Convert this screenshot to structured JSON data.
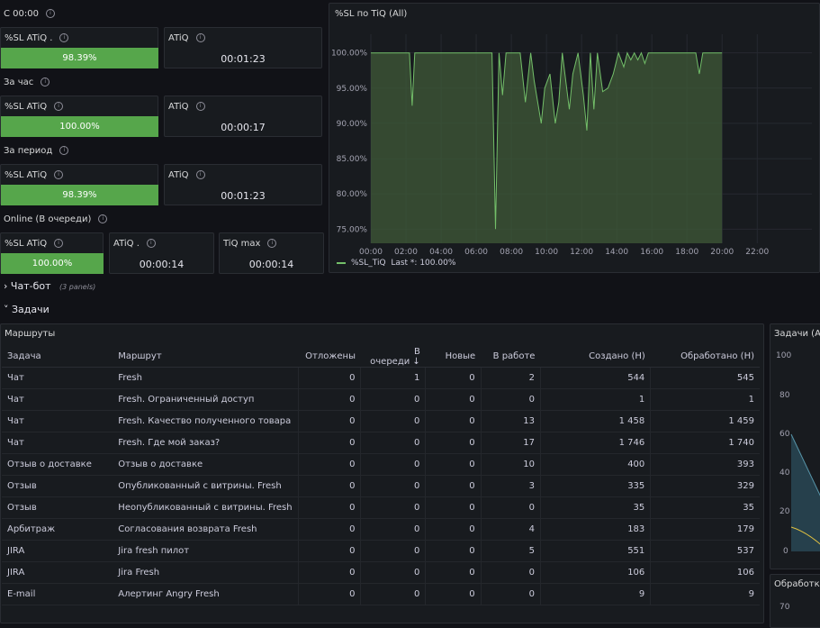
{
  "sections": [
    {
      "title": "С 00:00",
      "sl_label": "%SL ATiQ .",
      "sl_value": "98.39%",
      "sl_pct": 98.39,
      "atiq_label": "ATiQ",
      "atiq_value": "00:01:23"
    },
    {
      "title": "За час",
      "sl_label": "%SL ATiQ",
      "sl_value": "100.00%",
      "sl_pct": 100,
      "atiq_label": "ATiQ",
      "atiq_value": "00:00:17"
    },
    {
      "title": "За период",
      "sl_label": "%SL ATiQ",
      "sl_value": "98.39%",
      "sl_pct": 98.39,
      "atiq_label": "ATiQ",
      "atiq_value": "00:01:23"
    }
  ],
  "online": {
    "title": "Online (В очереди)",
    "sl_label": "%SL ATiQ",
    "sl_value": "100.00%",
    "sl_pct": 100,
    "atiq_label": "ATiQ .",
    "atiq_value": "00:00:14",
    "tiq_label": "TiQ max",
    "tiq_value": "00:00:14"
  },
  "chart_panel": {
    "title": "%SL по TiQ (All)",
    "legend_name": "%SL_TiQ",
    "legend_last": "Last *: 100.00%"
  },
  "chart_data": {
    "type": "area",
    "title": "%SL по TiQ (All)",
    "y_ticks": [
      "100.00%",
      "95.00%",
      "90.00%",
      "85.00%",
      "80.00%",
      "75.00%"
    ],
    "x_ticks": [
      "00:00",
      "02:00",
      "04:00",
      "06:00",
      "08:00",
      "10:00",
      "12:00",
      "14:00",
      "16:00",
      "18:00",
      "20:00",
      "22:00"
    ],
    "ylim": [
      73,
      102
    ],
    "xlim": [
      0,
      23
    ],
    "series": [
      {
        "name": "%SL_TiQ",
        "color": "#73bf69",
        "x": [
          0,
          2.2,
          2.35,
          2.5,
          2.7,
          6.9,
          7.1,
          7.3,
          7.5,
          7.7,
          7.9,
          8.5,
          8.8,
          9.1,
          9.3,
          9.5,
          9.7,
          9.9,
          10.2,
          10.5,
          10.7,
          10.9,
          11.1,
          11.3,
          11.5,
          11.8,
          12.1,
          12.3,
          12.5,
          12.7,
          12.9,
          13.2,
          13.5,
          13.8,
          14.1,
          14.4,
          14.6,
          14.8,
          15,
          15.2,
          15.4,
          15.6,
          15.8,
          16,
          18.5,
          18.7,
          18.9,
          20
        ],
        "y": [
          100,
          100,
          92.5,
          100,
          100,
          100,
          75,
          100,
          94,
          100,
          100,
          100,
          93,
          100,
          96,
          93,
          90,
          95,
          97,
          90,
          93,
          100,
          96,
          92,
          97,
          100,
          94,
          89,
          100,
          92,
          100,
          94.5,
          95,
          97,
          100,
          98,
          100,
          99,
          100,
          99,
          100,
          98.5,
          100,
          100,
          100,
          97,
          100,
          100
        ]
      }
    ]
  },
  "collapsed_row": {
    "title": "Чат-бот",
    "sub": "(3 panels)"
  },
  "tasks_row": {
    "title": "Задачи"
  },
  "table": {
    "title": "Маршруты",
    "headers": [
      "Задача",
      "Маршрут",
      "Отложены",
      "В очереди",
      "Новые",
      "В работе",
      "Создано (Н)",
      "Обработано (Н)"
    ],
    "sort_icon": "↓",
    "rows": [
      [
        "Чат",
        "Fresh",
        "0",
        "1",
        "0",
        "2",
        "544",
        "545"
      ],
      [
        "Чат",
        "Fresh. Ограниченный доступ",
        "0",
        "0",
        "0",
        "0",
        "1",
        "1"
      ],
      [
        "Чат",
        "Fresh. Качество полученного товара",
        "0",
        "0",
        "0",
        "13",
        "1 458",
        "1 459"
      ],
      [
        "Чат",
        "Fresh. Где мой заказ?",
        "0",
        "0",
        "0",
        "17",
        "1 746",
        "1 740"
      ],
      [
        "Отзыв о доставке",
        "Отзыв о доставке",
        "0",
        "0",
        "0",
        "10",
        "400",
        "393"
      ],
      [
        "Отзыв",
        "Опубликованный с витрины. Fresh",
        "0",
        "0",
        "0",
        "3",
        "335",
        "329"
      ],
      [
        "Отзыв",
        "Неопубликованный с витрины. Fresh",
        "0",
        "0",
        "0",
        "0",
        "35",
        "35"
      ],
      [
        "Арбитраж",
        "Согласования возврата Fresh",
        "0",
        "0",
        "0",
        "4",
        "183",
        "179"
      ],
      [
        "JIRA",
        "Jira fresh пилот",
        "0",
        "0",
        "0",
        "5",
        "551",
        "537"
      ],
      [
        "JIRA",
        "Jira Fresh",
        "0",
        "0",
        "0",
        "0",
        "106",
        "106"
      ],
      [
        "E-mail",
        "Алертинг Angry Fresh",
        "0",
        "0",
        "0",
        "0",
        "9",
        "9"
      ]
    ]
  },
  "right_panel": {
    "title": "Задачи (All",
    "y_ticks": [
      "100",
      "80",
      "60",
      "40",
      "20",
      "0"
    ]
  },
  "right_panel2": {
    "title": "Обработка",
    "y_tick": "70"
  }
}
